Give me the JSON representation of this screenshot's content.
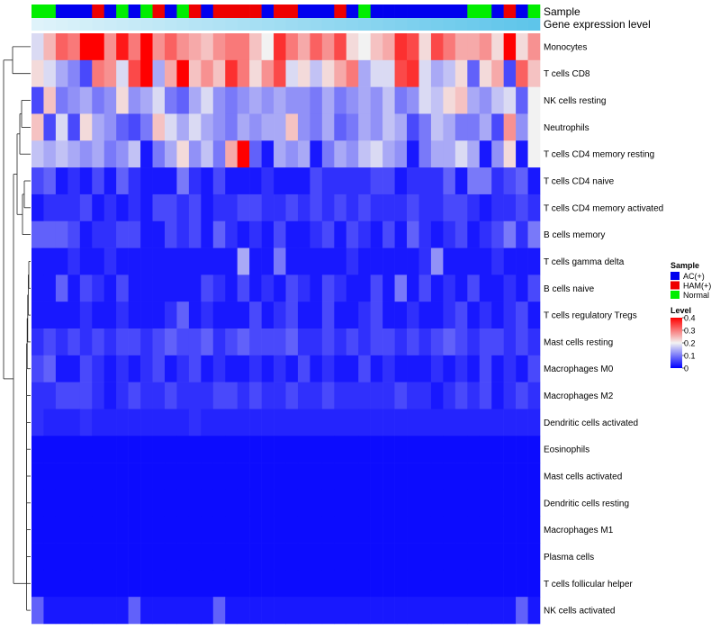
{
  "chart_data": {
    "type": "heatmap",
    "title": "",
    "xlabel": "",
    "ylabel": "",
    "annotation_tracks": [
      "Sample",
      "Gene expression level"
    ],
    "sample_groups": [
      "C",
      "C",
      "B",
      "B",
      "B",
      "R",
      "B",
      "C",
      "B",
      "C",
      "R",
      "B",
      "C",
      "R",
      "B",
      "R",
      "R",
      "R",
      "R",
      "B",
      "R",
      "R",
      "B",
      "B",
      "B",
      "R",
      "B",
      "C",
      "B",
      "B",
      "B",
      "B",
      "B",
      "B",
      "B",
      "B",
      "C",
      "C",
      "B",
      "R",
      "B",
      "C"
    ],
    "expression_scale_range": [
      0,
      1
    ],
    "rows": [
      "Monocytes",
      "T cells CD8",
      "NK cells resting",
      "Neutrophils",
      "T cells CD4 memory resting",
      "T cells CD4 naive",
      "T cells CD4 memory activated",
      "B cells memory",
      "T cells gamma delta",
      "B cells naive",
      "T cells regulatory  Tregs",
      "Mast cells resting",
      "Macrophages M0",
      "Macrophages M2",
      "Dendritic cells activated",
      "Eosinophils",
      "Mast cells activated",
      "Dendritic cells resting",
      "Macrophages M1",
      "Plasma cells",
      "T cells follicular helper",
      "NK cells activated"
    ],
    "values_by_row": [
      [
        0.18,
        0.25,
        0.32,
        0.3,
        0.4,
        0.4,
        0.28,
        0.38,
        0.3,
        0.4,
        0.28,
        0.32,
        0.28,
        0.26,
        0.24,
        0.28,
        0.3,
        0.3,
        0.24,
        0.2,
        0.36,
        0.3,
        0.26,
        0.32,
        0.28,
        0.34,
        0.22,
        0.2,
        0.24,
        0.26,
        0.36,
        0.34,
        0.22,
        0.34,
        0.3,
        0.26,
        0.26,
        0.28,
        0.22,
        0.4,
        0.22,
        0.28
      ],
      [
        0.22,
        0.18,
        0.14,
        0.11,
        0.06,
        0.3,
        0.28,
        0.18,
        0.34,
        0.4,
        0.14,
        0.26,
        0.4,
        0.24,
        0.28,
        0.24,
        0.36,
        0.3,
        0.22,
        0.28,
        0.34,
        0.18,
        0.22,
        0.16,
        0.22,
        0.26,
        0.3,
        0.14,
        0.18,
        0.18,
        0.34,
        0.36,
        0.18,
        0.14,
        0.16,
        0.22,
        0.08,
        0.22,
        0.26,
        0.06,
        0.32,
        0.24
      ],
      [
        0.06,
        0.24,
        0.1,
        0.12,
        0.14,
        0.1,
        0.12,
        0.22,
        0.12,
        0.14,
        0.18,
        0.1,
        0.08,
        0.14,
        0.18,
        0.12,
        0.1,
        0.12,
        0.14,
        0.12,
        0.14,
        0.12,
        0.12,
        0.1,
        0.14,
        0.1,
        0.12,
        0.14,
        0.12,
        0.16,
        0.1,
        0.12,
        0.18,
        0.16,
        0.22,
        0.24,
        0.14,
        0.12,
        0.16,
        0.18,
        0.08,
        0.2
      ],
      [
        0.24,
        0.06,
        0.18,
        0.06,
        0.22,
        0.14,
        0.12,
        0.08,
        0.06,
        0.1,
        0.24,
        0.18,
        0.14,
        0.18,
        0.14,
        0.12,
        0.1,
        0.14,
        0.12,
        0.14,
        0.14,
        0.24,
        0.12,
        0.1,
        0.14,
        0.08,
        0.1,
        0.14,
        0.12,
        0.16,
        0.14,
        0.06,
        0.1,
        0.16,
        0.14,
        0.1,
        0.1,
        0.14,
        0.06,
        0.28,
        0.12,
        0.2
      ],
      [
        0.16,
        0.14,
        0.16,
        0.14,
        0.12,
        0.14,
        0.1,
        0.12,
        0.16,
        0.02,
        0.1,
        0.14,
        0.22,
        0.12,
        0.16,
        0.1,
        0.26,
        0.4,
        0.08,
        0.02,
        0.14,
        0.12,
        0.14,
        0.02,
        0.1,
        0.14,
        0.12,
        0.16,
        0.18,
        0.14,
        0.12,
        0.02,
        0.1,
        0.14,
        0.14,
        0.18,
        0.14,
        0.02,
        0.12,
        0.22,
        0.02,
        0.2
      ],
      [
        0.06,
        0.08,
        0.02,
        0.04,
        0.02,
        0.06,
        0.02,
        0.08,
        0.04,
        0.02,
        0.02,
        0.02,
        0.1,
        0.04,
        0.02,
        0.06,
        0.02,
        0.02,
        0.02,
        0.04,
        0.02,
        0.02,
        0.02,
        0.06,
        0.04,
        0.04,
        0.04,
        0.04,
        0.06,
        0.06,
        0.02,
        0.04,
        0.04,
        0.04,
        0.08,
        0.02,
        0.1,
        0.1,
        0.04,
        0.06,
        0.08,
        0.02
      ],
      [
        0.02,
        0.04,
        0.04,
        0.04,
        0.06,
        0.02,
        0.04,
        0.02,
        0.04,
        0.02,
        0.06,
        0.06,
        0.04,
        0.06,
        0.02,
        0.04,
        0.04,
        0.06,
        0.06,
        0.04,
        0.04,
        0.06,
        0.04,
        0.06,
        0.04,
        0.06,
        0.04,
        0.06,
        0.04,
        0.04,
        0.04,
        0.06,
        0.04,
        0.04,
        0.06,
        0.06,
        0.04,
        0.02,
        0.04,
        0.04,
        0.06,
        0.04
      ],
      [
        0.08,
        0.08,
        0.08,
        0.06,
        0.02,
        0.04,
        0.04,
        0.06,
        0.06,
        0.02,
        0.02,
        0.06,
        0.04,
        0.06,
        0.02,
        0.08,
        0.04,
        0.02,
        0.04,
        0.02,
        0.06,
        0.02,
        0.02,
        0.04,
        0.06,
        0.02,
        0.06,
        0.04,
        0.02,
        0.06,
        0.02,
        0.08,
        0.04,
        0.02,
        0.04,
        0.06,
        0.02,
        0.04,
        0.06,
        0.1,
        0.04,
        0.1
      ],
      [
        0.02,
        0.02,
        0.02,
        0.04,
        0.02,
        0.02,
        0.04,
        0.02,
        0.02,
        0.02,
        0.02,
        0.02,
        0.02,
        0.02,
        0.02,
        0.02,
        0.02,
        0.14,
        0.02,
        0.02,
        0.1,
        0.02,
        0.02,
        0.02,
        0.02,
        0.02,
        0.04,
        0.02,
        0.02,
        0.02,
        0.02,
        0.02,
        0.04,
        0.12,
        0.02,
        0.02,
        0.02,
        0.02,
        0.04,
        0.02,
        0.02,
        0.02
      ],
      [
        0.02,
        0.02,
        0.08,
        0.02,
        0.06,
        0.04,
        0.02,
        0.06,
        0.02,
        0.02,
        0.02,
        0.02,
        0.02,
        0.02,
        0.06,
        0.04,
        0.02,
        0.06,
        0.02,
        0.04,
        0.02,
        0.06,
        0.04,
        0.02,
        0.06,
        0.04,
        0.02,
        0.02,
        0.06,
        0.02,
        0.1,
        0.02,
        0.06,
        0.02,
        0.04,
        0.02,
        0.06,
        0.02,
        0.02,
        0.04,
        0.02,
        0.06
      ],
      [
        0.02,
        0.02,
        0.02,
        0.02,
        0.04,
        0.02,
        0.02,
        0.04,
        0.02,
        0.02,
        0.02,
        0.04,
        0.08,
        0.02,
        0.04,
        0.02,
        0.02,
        0.02,
        0.06,
        0.02,
        0.04,
        0.06,
        0.02,
        0.02,
        0.06,
        0.02,
        0.02,
        0.04,
        0.06,
        0.02,
        0.02,
        0.04,
        0.02,
        0.02,
        0.04,
        0.06,
        0.02,
        0.04,
        0.02,
        0.04,
        0.06,
        0.02
      ],
      [
        0.04,
        0.06,
        0.04,
        0.06,
        0.04,
        0.06,
        0.04,
        0.06,
        0.06,
        0.04,
        0.06,
        0.08,
        0.06,
        0.06,
        0.08,
        0.04,
        0.06,
        0.08,
        0.06,
        0.06,
        0.06,
        0.08,
        0.04,
        0.04,
        0.06,
        0.04,
        0.06,
        0.04,
        0.06,
        0.06,
        0.04,
        0.06,
        0.04,
        0.06,
        0.08,
        0.06,
        0.04,
        0.06,
        0.06,
        0.04,
        0.06,
        0.04
      ],
      [
        0.06,
        0.08,
        0.02,
        0.02,
        0.06,
        0.04,
        0.02,
        0.04,
        0.02,
        0.04,
        0.06,
        0.02,
        0.04,
        0.06,
        0.02,
        0.04,
        0.02,
        0.02,
        0.04,
        0.02,
        0.04,
        0.02,
        0.06,
        0.02,
        0.04,
        0.02,
        0.02,
        0.06,
        0.02,
        0.04,
        0.02,
        0.02,
        0.02,
        0.04,
        0.02,
        0.04,
        0.02,
        0.06,
        0.02,
        0.04,
        0.02,
        0.06
      ],
      [
        0.04,
        0.04,
        0.06,
        0.06,
        0.06,
        0.04,
        0.02,
        0.04,
        0.06,
        0.04,
        0.04,
        0.06,
        0.04,
        0.04,
        0.04,
        0.06,
        0.06,
        0.04,
        0.06,
        0.04,
        0.04,
        0.06,
        0.04,
        0.04,
        0.06,
        0.04,
        0.04,
        0.04,
        0.04,
        0.04,
        0.06,
        0.04,
        0.04,
        0.02,
        0.04,
        0.06,
        0.04,
        0.06,
        0.02,
        0.04,
        0.06,
        0.04
      ],
      [
        0.04,
        0.03,
        0.03,
        0.03,
        0.04,
        0.03,
        0.03,
        0.03,
        0.03,
        0.03,
        0.03,
        0.03,
        0.03,
        0.04,
        0.03,
        0.03,
        0.03,
        0.03,
        0.03,
        0.03,
        0.03,
        0.03,
        0.03,
        0.03,
        0.03,
        0.03,
        0.03,
        0.03,
        0.03,
        0.03,
        0.03,
        0.03,
        0.03,
        0.03,
        0.03,
        0.03,
        0.03,
        0.03,
        0.03,
        0.03,
        0.03,
        0.03
      ],
      [
        0.01,
        0.01,
        0.01,
        0.01,
        0.01,
        0.01,
        0.01,
        0.01,
        0.01,
        0.01,
        0.01,
        0.01,
        0.01,
        0.01,
        0.01,
        0.01,
        0.01,
        0.01,
        0.01,
        0.01,
        0.01,
        0.01,
        0.01,
        0.01,
        0.01,
        0.01,
        0.01,
        0.01,
        0.01,
        0.01,
        0.01,
        0.01,
        0.01,
        0.01,
        0.01,
        0.01,
        0.01,
        0.01,
        0.01,
        0.01,
        0.01,
        0.01
      ],
      [
        0.01,
        0.01,
        0.01,
        0.01,
        0.01,
        0.01,
        0.01,
        0.01,
        0.01,
        0.01,
        0.01,
        0.01,
        0.01,
        0.01,
        0.01,
        0.01,
        0.01,
        0.01,
        0.01,
        0.01,
        0.01,
        0.01,
        0.01,
        0.01,
        0.01,
        0.01,
        0.01,
        0.01,
        0.01,
        0.01,
        0.01,
        0.01,
        0.01,
        0.01,
        0.01,
        0.01,
        0.01,
        0.01,
        0.01,
        0.01,
        0.01,
        0.01
      ],
      [
        0.01,
        0.01,
        0.01,
        0.01,
        0.01,
        0.01,
        0.01,
        0.01,
        0.01,
        0.01,
        0.01,
        0.01,
        0.01,
        0.01,
        0.01,
        0.01,
        0.01,
        0.01,
        0.01,
        0.01,
        0.01,
        0.01,
        0.01,
        0.01,
        0.01,
        0.01,
        0.01,
        0.01,
        0.01,
        0.01,
        0.01,
        0.01,
        0.01,
        0.01,
        0.01,
        0.01,
        0.01,
        0.01,
        0.01,
        0.01,
        0.01,
        0.01
      ],
      [
        0.01,
        0.01,
        0.01,
        0.01,
        0.01,
        0.01,
        0.01,
        0.01,
        0.01,
        0.01,
        0.01,
        0.01,
        0.01,
        0.01,
        0.01,
        0.01,
        0.01,
        0.01,
        0.01,
        0.01,
        0.01,
        0.01,
        0.01,
        0.01,
        0.01,
        0.01,
        0.01,
        0.01,
        0.01,
        0.01,
        0.01,
        0.01,
        0.01,
        0.01,
        0.01,
        0.01,
        0.01,
        0.01,
        0.01,
        0.01,
        0.01,
        0.01
      ],
      [
        0.01,
        0.01,
        0.01,
        0.01,
        0.01,
        0.01,
        0.01,
        0.01,
        0.01,
        0.01,
        0.01,
        0.01,
        0.01,
        0.01,
        0.01,
        0.01,
        0.01,
        0.01,
        0.01,
        0.01,
        0.01,
        0.01,
        0.01,
        0.01,
        0.01,
        0.01,
        0.01,
        0.01,
        0.01,
        0.01,
        0.01,
        0.01,
        0.01,
        0.01,
        0.01,
        0.01,
        0.01,
        0.01,
        0.01,
        0.01,
        0.01,
        0.01
      ],
      [
        0.01,
        0.01,
        0.01,
        0.01,
        0.01,
        0.01,
        0.01,
        0.01,
        0.01,
        0.01,
        0.01,
        0.01,
        0.01,
        0.01,
        0.01,
        0.01,
        0.01,
        0.01,
        0.01,
        0.01,
        0.01,
        0.01,
        0.01,
        0.01,
        0.01,
        0.01,
        0.01,
        0.01,
        0.01,
        0.01,
        0.01,
        0.01,
        0.01,
        0.01,
        0.01,
        0.01,
        0.01,
        0.01,
        0.01,
        0.01,
        0.01,
        0.01
      ],
      [
        0.08,
        0.02,
        0.02,
        0.02,
        0.02,
        0.02,
        0.02,
        0.02,
        0.08,
        0.02,
        0.02,
        0.02,
        0.02,
        0.02,
        0.02,
        0.08,
        0.02,
        0.02,
        0.02,
        0.02,
        0.02,
        0.02,
        0.02,
        0.02,
        0.02,
        0.02,
        0.02,
        0.02,
        0.02,
        0.02,
        0.02,
        0.02,
        0.02,
        0.02,
        0.02,
        0.02,
        0.02,
        0.02,
        0.02,
        0.02,
        0.08,
        0.02
      ]
    ],
    "legend": {
      "sample_title": "Sample",
      "sample_entries": [
        {
          "label": "AC(+)",
          "color": "#0000ee"
        },
        {
          "label": "HAM(+)",
          "color": "#ee0000"
        },
        {
          "label": "Normal",
          "color": "#00ee00"
        }
      ],
      "level_title": "Level",
      "level_ticks": [
        "0.4",
        "0.3",
        "0.2",
        "0.1",
        "0"
      ],
      "level_range": [
        0,
        0.4
      ],
      "placement": "right"
    }
  },
  "colors": {
    "low": "#0000ff",
    "mid": "#f2f2f2",
    "high": "#ff0000",
    "expr_low": "#dff3fa",
    "expr_high": "#5ec5ea"
  }
}
